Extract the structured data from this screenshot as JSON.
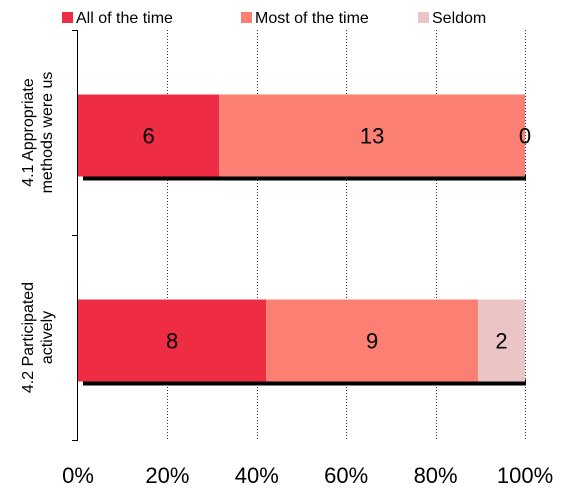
{
  "chart_data": {
    "type": "bar",
    "orientation": "horizontal",
    "stacked": "percent",
    "categories": [
      [
        "4.1 Appropriate",
        "methods were us"
      ],
      [
        "4.2 Participated",
        "actively"
      ]
    ],
    "series": [
      {
        "name": "All of the time",
        "values": [
          6,
          8
        ],
        "color": "#ee2c44"
      },
      {
        "name": "Most of the time",
        "values": [
          13,
          9
        ],
        "color": "#fc7f74"
      },
      {
        "name": "Seldom",
        "values": [
          0,
          2
        ],
        "color": "#ebc5c5"
      }
    ],
    "xticks": [
      "0%",
      "20%",
      "40%",
      "60%",
      "80%",
      "100%"
    ],
    "xlim": [
      0,
      100
    ],
    "grid": "vertical dotted",
    "legend": "top"
  }
}
